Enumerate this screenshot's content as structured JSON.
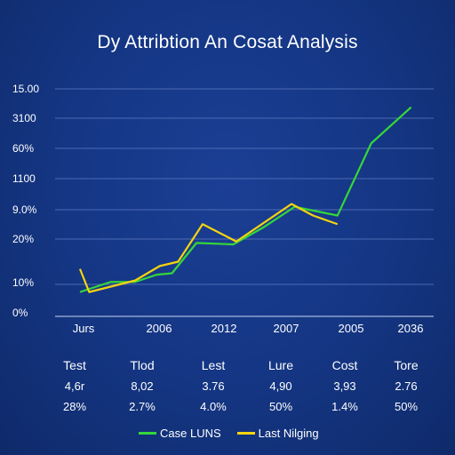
{
  "chart_data": {
    "type": "line",
    "title": "Dy Attribtion An Cosat Analysis",
    "y_ticks": [
      "15.00",
      "3100",
      "60%",
      "1100",
      "9.0%",
      "20%",
      "10%",
      "0%"
    ],
    "x_ticks": [
      "Jurs",
      "2006",
      "2012",
      "2007",
      "2005",
      "2036"
    ],
    "ylim": [
      0,
      7
    ],
    "xlim": [
      0,
      10
    ],
    "grid": true,
    "series": [
      {
        "name": "Case LUNS",
        "color": "#35d63a",
        "points": [
          [
            0,
            0.35
          ],
          [
            1.0,
            0.7
          ],
          [
            1.8,
            0.7
          ],
          [
            2.5,
            0.95
          ],
          [
            3.0,
            1.0
          ],
          [
            3.8,
            2.05
          ],
          [
            5.0,
            2.0
          ],
          [
            6.0,
            2.6
          ],
          [
            7.0,
            3.3
          ],
          [
            8.4,
            3.0
          ],
          [
            9.5,
            5.5
          ],
          [
            10.8,
            6.75
          ]
        ]
      },
      {
        "name": "Last Nilging",
        "color": "#f5d40e",
        "points": [
          [
            0,
            1.15
          ],
          [
            0.3,
            0.35
          ],
          [
            1.8,
            0.75
          ],
          [
            2.6,
            1.25
          ],
          [
            3.2,
            1.4
          ],
          [
            4.0,
            2.7
          ],
          [
            5.1,
            2.1
          ],
          [
            6.9,
            3.4
          ],
          [
            7.6,
            3.0
          ],
          [
            8.4,
            2.7
          ]
        ]
      }
    ],
    "legend_position": "bottom"
  },
  "table": {
    "headers": [
      "Test",
      "Tlod",
      "Lest",
      "Lure",
      "Cost",
      "Tore"
    ],
    "rows": [
      [
        "4,6r",
        "8,02",
        "3.76",
        "4,90",
        "3,93",
        "2.76"
      ],
      [
        "28%",
        "2.7%",
        "4.0%",
        "50%",
        "1.4%",
        "50%"
      ]
    ]
  }
}
